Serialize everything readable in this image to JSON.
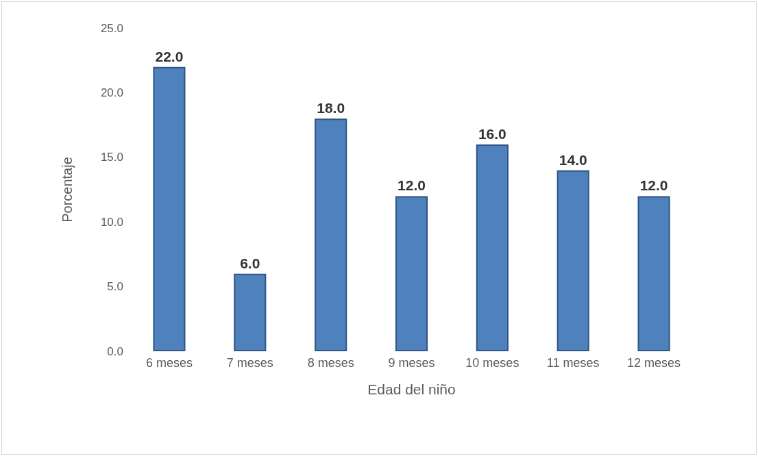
{
  "chart_data": {
    "type": "bar",
    "xlabel": "Edad del niño",
    "ylabel": "Porcentaje",
    "categories": [
      "6 meses",
      "7 meses",
      "8 meses",
      "9 meses",
      "10 meses",
      "11 meses",
      "12 meses"
    ],
    "values": [
      22.0,
      6.0,
      18.0,
      12.0,
      16.0,
      14.0,
      12.0
    ],
    "value_labels": [
      "22.0",
      "6.0",
      "18.0",
      "12.0",
      "16.0",
      "14.0",
      "12.0"
    ],
    "color": "#4f81bd",
    "ylim": [
      0,
      25
    ],
    "yticks": [
      {
        "value": 0,
        "label": "0.0"
      },
      {
        "value": 5,
        "label": "5.0"
      },
      {
        "value": 10,
        "label": "10.0"
      },
      {
        "value": 15,
        "label": "15.0"
      },
      {
        "value": 20,
        "label": "20.0"
      },
      {
        "value": 25,
        "label": "25.0"
      }
    ],
    "grid": false
  }
}
